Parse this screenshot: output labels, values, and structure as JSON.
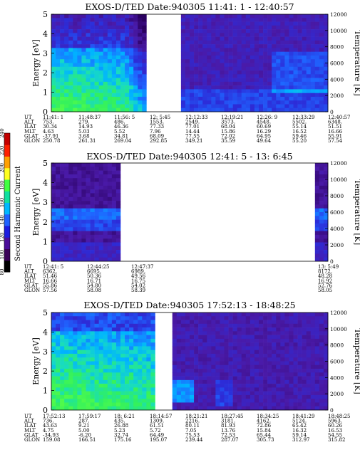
{
  "colorbar": {
    "label": "Second Harmonic Current",
    "ticks": [
      "80",
      "100",
      "120",
      "140",
      "160",
      "180",
      "200",
      "220",
      "240"
    ],
    "colors": [
      "#000000",
      "#3a0058",
      "#4b0d9a",
      "#1c1ce0",
      "#1f62ff",
      "#00b8ff",
      "#10e0a0",
      "#40ff40",
      "#ffff20",
      "#ffa000",
      "#ff2000",
      "#c40000"
    ]
  },
  "chart_data": [
    {
      "type": "heatmap",
      "title": "EXOS-D/TED    Date:940305  11:41: 1 - 12:40:57",
      "ylabel": "Energy [eV]",
      "ylabel_right": "Temperature [K]",
      "yticks": [
        "0",
        "1",
        "2",
        "3",
        "4",
        "5"
      ],
      "yticks_right": [
        "0",
        "2000",
        "4000",
        "6000",
        "8000",
        "10000",
        "12000"
      ],
      "ylim": [
        0,
        5
      ],
      "ylim_right": [
        0,
        12000
      ],
      "data_gaps": [
        [
          0.345,
          0.465
        ]
      ],
      "intensity_profile": "high (green/cyan up to ~3 eV) before the gap, low (blue/violet) after",
      "ephemeris": {
        "row_labels": [
          "UT",
          "ALT",
          "ILAT",
          "MLT",
          "GLAT",
          "GLON"
        ],
        "columns": [
          [
            "11:41: 1",
            "753.",
            "30.34",
            "4.63",
            "-37.91",
            "250.78"
          ],
          [
            "11:48:37",
            "279.",
            "14.93",
            "5.03",
            "3.68",
            "261.31"
          ],
          [
            "11:56: 5",
            "486.",
            "46.36",
            "5.52",
            "34.81",
            "269.04"
          ],
          [
            "12: 5:45",
            "1553.",
            "77.33",
            "7.96",
            "68.09",
            "292.85"
          ],
          [
            "12:12:33",
            "2549.",
            "77.01",
            "14.44",
            "77.55",
            "349.21"
          ],
          [
            "12:19:21",
            "3573.",
            "68.04",
            "15.86",
            "72.02",
            "35.59"
          ],
          [
            "12:26: 9",
            "4548.",
            "60.69",
            "16.29",
            "64.95",
            "49.64"
          ],
          [
            "12:33:29",
            "5502.",
            "55.14",
            "16.52",
            "59.46",
            "55.20"
          ],
          [
            "12:40:57",
            "6348.",
            "51.51",
            "16.66",
            "55.91",
            "57.54"
          ]
        ]
      }
    },
    {
      "type": "heatmap",
      "title": "EXOS-D/TED    Date:940305  12:41: 5 - 13: 6:45",
      "ylabel": "Energy [eV]",
      "ylabel_right": "Temperature [K]",
      "yticks": [
        "0",
        "1",
        "2",
        "3",
        "4",
        "5"
      ],
      "yticks_right": [
        "0",
        "2000",
        "4000",
        "6000",
        "8000",
        "10000",
        "12000"
      ],
      "ylim": [
        0,
        5
      ],
      "ylim_right": [
        0,
        12000
      ],
      "data_gaps": [
        [
          0.245,
          0.955
        ]
      ],
      "intensity_profile": "moderate blue band 1.5-2.5 eV, violet above",
      "ephemeris": {
        "row_labels": [
          "UT",
          "ALT",
          "ILAT",
          "MLT",
          "GLAT",
          "GLON"
        ],
        "columns": [
          [
            "12:41: 5",
            "6362.",
            "51.46",
            "16.66",
            "55.86",
            "57.56"
          ],
          [
            "12:44:25",
            "6695.",
            "50.36",
            "16.71",
            "54.80",
            "58.08"
          ],
          [
            "12:47:37",
            "6989.",
            "49.56",
            "16.75",
            "54.02",
            "58.39"
          ],
          [
            "13: 5:49",
            "8172.",
            "48.28",
            "16.92",
            "52.76",
            "58.05"
          ]
        ]
      }
    },
    {
      "type": "heatmap",
      "title": "EXOS-D/TED    Date:940305  17:52:13 - 18:48:25",
      "ylabel": "Energy [eV]",
      "ylabel_right": "Temperature [K]",
      "yticks": [
        "0",
        "1",
        "2",
        "3",
        "4",
        "5"
      ],
      "yticks_right": [
        "0",
        "2000",
        "4000",
        "6000",
        "8000",
        "10000",
        "12000"
      ],
      "ylim": [
        0,
        5
      ],
      "ylim_right": [
        0,
        12000
      ],
      "data_gaps": [
        [
          0.375,
          0.445
        ]
      ],
      "intensity_profile": "high (green/cyan up to ~4 eV) before the gap, low (blue/violet) after with cyan spots near 1 eV",
      "ephemeris": {
        "row_labels": [
          "UT",
          "ALT",
          "ILAT",
          "MLT",
          "GLAT",
          "GLON"
        ],
        "columns": [
          [
            "17:52:13",
            "736.",
            "43.63",
            "4.75",
            "-34.93",
            "159.08"
          ],
          [
            "17:59:17",
            "287.",
            "9.21",
            "5.00",
            "-6.20",
            "166.51"
          ],
          [
            "18: 6:21",
            "435.",
            "26.88",
            "5.23",
            "32.74",
            "175.16"
          ],
          [
            "18:14:57",
            "1309.",
            "61.51",
            "5.72",
            "64.49",
            "195.07"
          ],
          [
            "18:21:21",
            "2216.",
            "80.11",
            "7.05",
            "75.53",
            "239.44"
          ],
          [
            "18:27:45",
            "3181.",
            "81.93",
            "13.76",
            "72.53",
            "287.07"
          ],
          [
            "18:34:25",
            "4162.",
            "72.86",
            "15.84",
            "65.44",
            "305.73"
          ],
          [
            "18:41:29",
            "5124.",
            "65.42",
            "16.32",
            "59.14",
            "312.97"
          ],
          [
            "18:48:25",
            "5963.",
            "60.26",
            "16.53",
            "54.55",
            "315.82"
          ]
        ]
      }
    }
  ]
}
